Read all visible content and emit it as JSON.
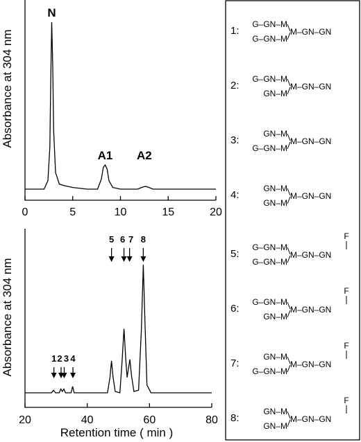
{
  "chart_data": [
    {
      "type": "line",
      "ylabel": "Absorbance  at  304  nm",
      "xlabel": "",
      "xlim": [
        0,
        20
      ],
      "xticks": [
        "0",
        "5",
        "10",
        "15",
        "20"
      ],
      "peak_labels": [
        {
          "label": "N",
          "x": 2.8
        },
        {
          "label": "A1",
          "x": 8.4
        },
        {
          "label": "A2",
          "x": 12.5
        }
      ],
      "series": [
        {
          "x": [
            0.0,
            2.0,
            2.4,
            2.6,
            2.7,
            2.8,
            2.9,
            3.0,
            3.2,
            3.6,
            4.2,
            5.0,
            6.5,
            7.6,
            8.0,
            8.2,
            8.4,
            8.6,
            8.8,
            9.2,
            10.0,
            11.8,
            12.3,
            12.6,
            12.9,
            13.4,
            16.0,
            20.0
          ],
          "y": [
            0.0,
            0.0,
            0.05,
            0.25,
            0.65,
            1.0,
            0.75,
            0.35,
            0.1,
            0.03,
            0.02,
            0.01,
            0.0,
            0.0,
            0.06,
            0.13,
            0.145,
            0.12,
            0.05,
            0.01,
            0.0,
            0.0,
            0.012,
            0.016,
            0.012,
            0.0,
            0.0,
            0.0
          ]
        }
      ]
    },
    {
      "type": "line",
      "ylabel": "Absorbance  at  304  nm",
      "xlabel": "Retention  time  ( min )",
      "xlim": [
        20,
        80
      ],
      "xticks": [
        "20",
        "40",
        "60",
        "80"
      ],
      "arrow_markers": [
        {
          "label": "1",
          "x": 29.3
        },
        {
          "label": "2",
          "x": 31.6
        },
        {
          "label": "3",
          "x": 32.6
        },
        {
          "label": "4",
          "x": 35.4
        },
        {
          "label": "5",
          "x": 47.8
        },
        {
          "label": "6",
          "x": 51.8
        },
        {
          "label": "7",
          "x": 53.6
        },
        {
          "label": "8",
          "x": 58.0
        }
      ],
      "series": [
        {
          "x": [
            20,
            28.5,
            29.2,
            29.8,
            31.0,
            31.5,
            32.0,
            32.5,
            33.0,
            34.8,
            35.3,
            35.8,
            36.5,
            46.5,
            47.3,
            47.8,
            48.3,
            49.0,
            50.5,
            51.2,
            51.8,
            52.4,
            52.8,
            53.3,
            53.7,
            54.2,
            55.0,
            56.5,
            57.4,
            58.0,
            58.6,
            59.2,
            60.5,
            70,
            80
          ],
          "y": [
            0.0,
            0.0,
            0.02,
            0.0,
            0.0,
            0.03,
            0.01,
            0.03,
            0.0,
            0.0,
            0.05,
            0.0,
            0.0,
            0.0,
            0.12,
            0.25,
            0.12,
            0.01,
            0.0,
            0.25,
            0.5,
            0.25,
            0.12,
            0.2,
            0.26,
            0.14,
            0.01,
            0.02,
            0.5,
            1.0,
            0.5,
            0.06,
            0.0,
            0.0,
            0.0
          ]
        }
      ]
    }
  ],
  "legend": {
    "items": [
      {
        "num": "1:",
        "upper": "G–GN–M",
        "lower": "G–GN–M",
        "core": "M–GN–GN",
        "fucose": false
      },
      {
        "num": "2:",
        "upper": "G–GN–M",
        "lower": "GN–M",
        "core": "M–GN–GN",
        "fucose": false
      },
      {
        "num": "3:",
        "upper": "GN–M",
        "lower": "G–GN–M",
        "core": "M–GN–GN",
        "fucose": false
      },
      {
        "num": "4:",
        "upper": "GN–M",
        "lower": "GN–M",
        "core": "M–GN–GN",
        "fucose": false
      },
      {
        "num": "5:",
        "upper": "G–GN–M",
        "lower": "G–GN–M",
        "core": "M–GN–GN",
        "fucose": true
      },
      {
        "num": "6:",
        "upper": "G–GN–M",
        "lower": "GN–M",
        "core": "M–GN–GN",
        "fucose": true
      },
      {
        "num": "7:",
        "upper": "GN–M",
        "lower": "G–GN–M",
        "core": "M–GN–GN",
        "fucose": true
      },
      {
        "num": "8:",
        "upper": "GN–M",
        "lower": "GN–M",
        "core": "M–GN–GN",
        "fucose": true
      }
    ],
    "fucose_label": "F"
  }
}
